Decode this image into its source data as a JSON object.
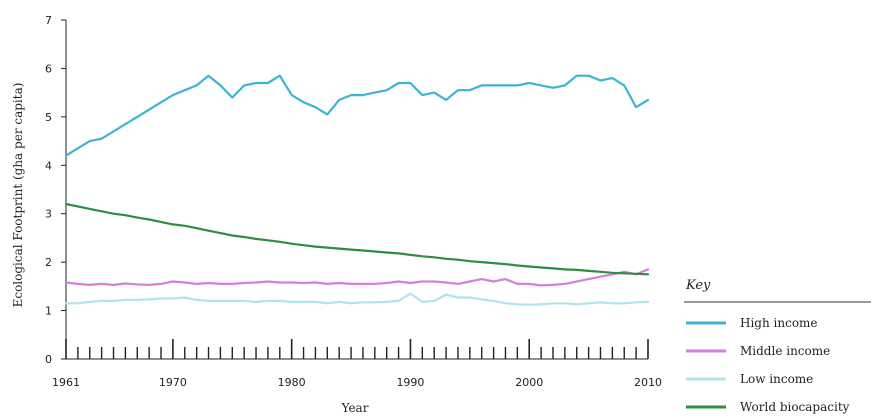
{
  "chart_data": {
    "type": "line",
    "xlabel": "Year",
    "ylabel": "Ecological Footprint (gha per capita)",
    "xlim": [
      1961,
      2010
    ],
    "ylim": [
      0,
      7
    ],
    "x_ticks": [
      "1961",
      "1970",
      "1980",
      "1990",
      "2000",
      "2010"
    ],
    "y_ticks": [
      "0",
      "1",
      "2",
      "3",
      "4",
      "5",
      "6",
      "7"
    ],
    "legend_title": "Key",
    "legend_position": "bottom-right",
    "grid": "none",
    "colors": {
      "high": "#3fb3d2",
      "middle": "#d57ee0",
      "low": "#aee4ea",
      "world": "#2f8c43",
      "axis": "#222222"
    },
    "x": [
      1961,
      1962,
      1963,
      1964,
      1965,
      1966,
      1967,
      1968,
      1969,
      1970,
      1971,
      1972,
      1973,
      1974,
      1975,
      1976,
      1977,
      1978,
      1979,
      1980,
      1981,
      1982,
      1983,
      1984,
      1985,
      1986,
      1987,
      1988,
      1989,
      1990,
      1991,
      1992,
      1993,
      1994,
      1995,
      1996,
      1997,
      1998,
      1999,
      2000,
      2001,
      2002,
      2003,
      2004,
      2005,
      2006,
      2007,
      2008,
      2009,
      2010
    ],
    "series": [
      {
        "name": "High income",
        "color_key": "high",
        "values": [
          4.2,
          4.35,
          4.5,
          4.55,
          4.7,
          4.85,
          5.0,
          5.15,
          5.3,
          5.45,
          5.55,
          5.65,
          5.85,
          5.65,
          5.4,
          5.65,
          5.7,
          5.7,
          5.85,
          5.45,
          5.3,
          5.2,
          5.05,
          5.35,
          5.45,
          5.45,
          5.5,
          5.55,
          5.7,
          5.7,
          5.45,
          5.5,
          5.35,
          5.55,
          5.55,
          5.65,
          5.65,
          5.65,
          5.65,
          5.7,
          5.65,
          5.6,
          5.65,
          5.85,
          5.85,
          5.75,
          5.8,
          5.65,
          5.2,
          5.35
        ]
      },
      {
        "name": "Middle income",
        "color_key": "middle",
        "values": [
          1.58,
          1.55,
          1.53,
          1.55,
          1.53,
          1.56,
          1.54,
          1.53,
          1.55,
          1.6,
          1.58,
          1.55,
          1.57,
          1.55,
          1.55,
          1.57,
          1.58,
          1.6,
          1.58,
          1.58,
          1.57,
          1.58,
          1.55,
          1.57,
          1.55,
          1.55,
          1.55,
          1.57,
          1.6,
          1.57,
          1.6,
          1.6,
          1.58,
          1.55,
          1.6,
          1.65,
          1.6,
          1.65,
          1.55,
          1.55,
          1.52,
          1.53,
          1.55,
          1.6,
          1.65,
          1.7,
          1.75,
          1.8,
          1.75,
          1.85
        ]
      },
      {
        "name": "Low income",
        "color_key": "low",
        "values": [
          1.15,
          1.15,
          1.18,
          1.2,
          1.2,
          1.22,
          1.22,
          1.23,
          1.25,
          1.25,
          1.27,
          1.22,
          1.2,
          1.2,
          1.2,
          1.2,
          1.18,
          1.2,
          1.2,
          1.18,
          1.18,
          1.18,
          1.15,
          1.18,
          1.15,
          1.17,
          1.17,
          1.18,
          1.2,
          1.35,
          1.18,
          1.2,
          1.33,
          1.27,
          1.27,
          1.23,
          1.2,
          1.15,
          1.13,
          1.12,
          1.13,
          1.15,
          1.15,
          1.13,
          1.15,
          1.17,
          1.15,
          1.15,
          1.17,
          1.18
        ]
      },
      {
        "name": "World biocapacity",
        "color_key": "world",
        "values": [
          3.2,
          3.15,
          3.1,
          3.05,
          3.0,
          2.97,
          2.92,
          2.88,
          2.83,
          2.78,
          2.75,
          2.7,
          2.65,
          2.6,
          2.55,
          2.52,
          2.48,
          2.45,
          2.42,
          2.38,
          2.35,
          2.32,
          2.3,
          2.28,
          2.26,
          2.24,
          2.22,
          2.2,
          2.18,
          2.15,
          2.12,
          2.1,
          2.07,
          2.05,
          2.02,
          2.0,
          1.98,
          1.96,
          1.93,
          1.91,
          1.89,
          1.87,
          1.85,
          1.84,
          1.82,
          1.8,
          1.78,
          1.77,
          1.76,
          1.75
        ]
      }
    ]
  }
}
